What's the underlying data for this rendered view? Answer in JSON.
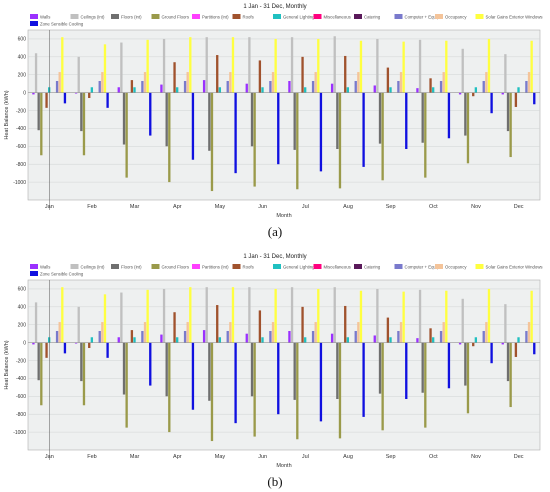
{
  "chart_data": [
    {
      "type": "bar",
      "title": "1 Jan - 31 Dec, Monthly",
      "xlabel": "Month",
      "ylabel": "Heat Balance (kWh)",
      "ylim": [
        -1200,
        700
      ],
      "yticks": [
        600,
        400,
        200,
        0,
        -200,
        -400,
        -600,
        -800,
        -1000
      ],
      "grid": true,
      "legend_position": "top",
      "categories": [
        "Jan",
        "Feb",
        "Mar",
        "Apr",
        "May",
        "Jun",
        "Jul",
        "Aug",
        "Sep",
        "Oct",
        "Nov",
        "Dec"
      ],
      "series": [
        {
          "name": "Walls",
          "color": "#9b30ff",
          "values": [
            -20,
            -10,
            60,
            90,
            140,
            100,
            130,
            100,
            80,
            50,
            -20,
            -20
          ]
        },
        {
          "name": "Ceilings (int)",
          "color": "#c0c0c0",
          "values": [
            440,
            400,
            560,
            600,
            620,
            620,
            620,
            630,
            600,
            590,
            490,
            430
          ]
        },
        {
          "name": "Floors (int)",
          "color": "#6f6f6f",
          "values": [
            -420,
            -430,
            -580,
            -600,
            -650,
            -600,
            -640,
            -630,
            -570,
            -560,
            -480,
            -430
          ]
        },
        {
          "name": "Ground Floors",
          "color": "#9a9a4a",
          "values": [
            -700,
            -700,
            -950,
            -1000,
            -1100,
            -1050,
            -1080,
            -1070,
            -980,
            -950,
            -790,
            -720
          ]
        },
        {
          "name": "Partitions (int)",
          "color": "#ff40ff",
          "values": [
            0,
            0,
            0,
            0,
            0,
            0,
            0,
            0,
            0,
            0,
            0,
            0
          ]
        },
        {
          "name": "Roofs",
          "color": "#a0522d",
          "values": [
            -170,
            -60,
            140,
            340,
            420,
            360,
            400,
            410,
            280,
            160,
            -40,
            -160
          ]
        },
        {
          "name": "General Lighting",
          "color": "#20c0c0",
          "values": [
            60,
            60,
            60,
            60,
            60,
            60,
            60,
            60,
            60,
            60,
            60,
            60
          ]
        },
        {
          "name": "Miscellaneous",
          "color": "#ff007f",
          "values": [
            0,
            0,
            0,
            0,
            0,
            0,
            0,
            0,
            0,
            0,
            0,
            0
          ]
        },
        {
          "name": "Catering",
          "color": "#5a1a5a",
          "values": [
            0,
            0,
            0,
            0,
            0,
            0,
            0,
            0,
            0,
            0,
            0,
            0
          ]
        },
        {
          "name": "Computer + Equip",
          "color": "#7a7acc",
          "values": [
            130,
            130,
            130,
            130,
            130,
            130,
            130,
            130,
            130,
            130,
            130,
            130
          ]
        },
        {
          "name": "Occupancy",
          "color": "#f4c49a",
          "values": [
            230,
            230,
            230,
            230,
            230,
            230,
            230,
            230,
            230,
            230,
            230,
            230
          ]
        },
        {
          "name": "Solar Gains Exterior Windows",
          "color": "#ffff40",
          "values": [
            620,
            540,
            590,
            620,
            620,
            600,
            600,
            580,
            570,
            580,
            600,
            580
          ]
        },
        {
          "name": "Zone Sensible Cooling",
          "color": "#1010e0",
          "values": [
            -120,
            -170,
            -480,
            -750,
            -900,
            -800,
            -880,
            -830,
            -630,
            -510,
            -230,
            -130
          ]
        }
      ]
    },
    {
      "type": "bar",
      "title": "1 Jan - 31 Dec, Monthly",
      "xlabel": "Month",
      "ylabel": "Heat Balance (kWh)",
      "ylim": [
        -1200,
        700
      ],
      "yticks": [
        600,
        400,
        200,
        0,
        -200,
        -400,
        -600,
        -800,
        -1000
      ],
      "grid": true,
      "legend_position": "top",
      "categories": [
        "Jan",
        "Feb",
        "Mar",
        "Apr",
        "May",
        "Jun",
        "Jul",
        "Aug",
        "Sep",
        "Oct",
        "Nov",
        "Dec"
      ],
      "series": [
        {
          "name": "Walls",
          "color": "#9b30ff",
          "values": [
            -20,
            -10,
            60,
            90,
            140,
            100,
            130,
            100,
            80,
            50,
            -20,
            -20
          ]
        },
        {
          "name": "Ceilings (int)",
          "color": "#c0c0c0",
          "values": [
            450,
            400,
            560,
            600,
            620,
            620,
            620,
            620,
            600,
            590,
            490,
            430
          ]
        },
        {
          "name": "Floors (int)",
          "color": "#6f6f6f",
          "values": [
            -420,
            -430,
            -580,
            -600,
            -650,
            -600,
            -640,
            -630,
            -570,
            -560,
            -480,
            -430
          ]
        },
        {
          "name": "Ground Floors",
          "color": "#9a9a4a",
          "values": [
            -700,
            -700,
            -950,
            -1000,
            -1100,
            -1050,
            -1080,
            -1070,
            -980,
            -950,
            -790,
            -720
          ]
        },
        {
          "name": "Partitions (int)",
          "color": "#ff40ff",
          "values": [
            0,
            0,
            0,
            0,
            0,
            0,
            0,
            0,
            0,
            0,
            0,
            0
          ]
        },
        {
          "name": "Roofs",
          "color": "#a0522d",
          "values": [
            -170,
            -60,
            140,
            340,
            420,
            360,
            400,
            410,
            280,
            160,
            -40,
            -160
          ]
        },
        {
          "name": "General Lighting",
          "color": "#20c0c0",
          "values": [
            60,
            60,
            60,
            60,
            60,
            60,
            60,
            60,
            60,
            60,
            60,
            60
          ]
        },
        {
          "name": "Miscellaneous",
          "color": "#ff007f",
          "values": [
            0,
            0,
            0,
            0,
            0,
            0,
            0,
            0,
            0,
            0,
            0,
            0
          ]
        },
        {
          "name": "Catering",
          "color": "#5a1a5a",
          "values": [
            0,
            0,
            0,
            0,
            0,
            0,
            0,
            0,
            0,
            0,
            0,
            0
          ]
        },
        {
          "name": "Computer + Equip",
          "color": "#7a7acc",
          "values": [
            130,
            130,
            130,
            130,
            130,
            130,
            130,
            130,
            130,
            130,
            130,
            130
          ]
        },
        {
          "name": "Occupancy",
          "color": "#f4c49a",
          "values": [
            230,
            230,
            230,
            230,
            230,
            230,
            230,
            230,
            230,
            230,
            230,
            230
          ]
        },
        {
          "name": "Solar Gains Exterior Windows",
          "color": "#ffff40",
          "values": [
            620,
            540,
            590,
            620,
            620,
            600,
            600,
            580,
            570,
            580,
            600,
            580
          ]
        },
        {
          "name": "Zone Sensible Cooling",
          "color": "#1010e0",
          "values": [
            -120,
            -170,
            -480,
            -750,
            -900,
            -800,
            -880,
            -830,
            -630,
            -510,
            -230,
            -130
          ]
        }
      ]
    }
  ],
  "captions": [
    "(a)",
    "(b)"
  ]
}
